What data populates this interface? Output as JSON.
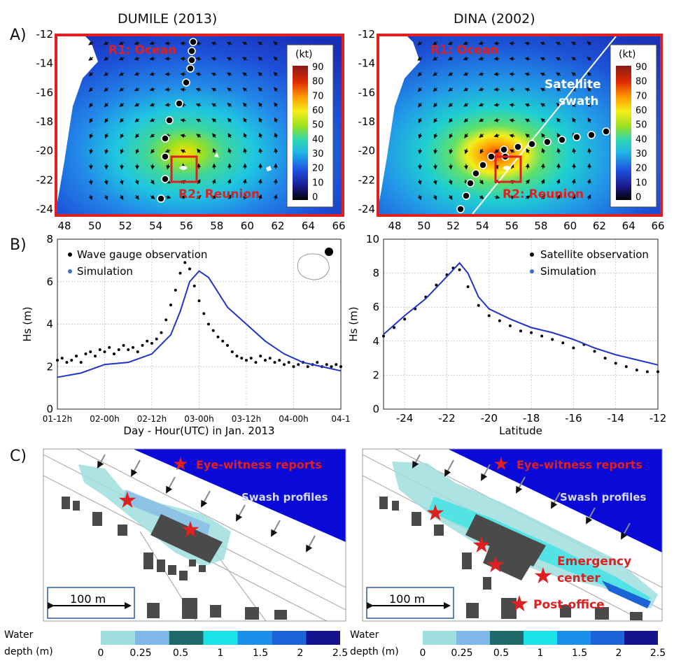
{
  "titles": {
    "left": "DUMILE (2013)",
    "right": "DINA (2002)"
  },
  "row_labels": {
    "a": "A)",
    "b": "B)",
    "c": "C)"
  },
  "maps": {
    "region1": "R1: Ocean",
    "region2": "R2: Reunion",
    "swath_label_1": "Satellite",
    "swath_label_2": "swath",
    "colorbar_unit": "(kt)",
    "colorbar_ticks": [
      "90",
      "80",
      "70",
      "60",
      "50",
      "40",
      "30",
      "20",
      "10",
      "0"
    ],
    "lon_ticks": [
      "48",
      "50",
      "52",
      "54",
      "56",
      "58",
      "60",
      "62",
      "64",
      "66"
    ],
    "lat_ticks": [
      "-12",
      "-14",
      "-16",
      "-18",
      "-20",
      "-22",
      "-24"
    ],
    "frame_color": "#e02020"
  },
  "chart_data": [
    {
      "type": "scatter",
      "title": "",
      "xlabel": "Day - Hour(UTC) in Jan. 2013",
      "ylabel": "Hs (m)",
      "categories": [
        "01-12h",
        "02-00h",
        "02-12h",
        "03-00h",
        "03-12h",
        "04-00h",
        "04-1"
      ],
      "ylim": [
        0,
        8
      ],
      "yticks": [
        "0",
        "2",
        "4",
        "6",
        "8"
      ],
      "grid": true,
      "legend_position": "top-left",
      "series": [
        {
          "name": "Wave gauge observation",
          "color": "#000000",
          "x": [
            0,
            0.1,
            0.2,
            0.3,
            0.4,
            0.5,
            0.6,
            0.7,
            0.8,
            0.9,
            1.0,
            1.1,
            1.2,
            1.3,
            1.4,
            1.5,
            1.6,
            1.7,
            1.8,
            1.9,
            2.0,
            2.1,
            2.2,
            2.3,
            2.4,
            2.5,
            2.6,
            2.7,
            2.8,
            2.9,
            3.0,
            3.1,
            3.2,
            3.3,
            3.4,
            3.5,
            3.6,
            3.7,
            3.8,
            3.9,
            4.0,
            4.1,
            4.2,
            4.3,
            4.4,
            4.5,
            4.6,
            4.7,
            4.8,
            4.9,
            5.0,
            5.1,
            5.2,
            5.3,
            5.4,
            5.5,
            5.6,
            5.7,
            5.8,
            5.9,
            6.0
          ],
          "y": [
            2.3,
            2.4,
            2.2,
            2.3,
            2.5,
            2.2,
            2.6,
            2.7,
            2.5,
            2.8,
            2.7,
            2.9,
            2.6,
            2.8,
            3.0,
            2.8,
            2.9,
            2.7,
            3.0,
            3.2,
            3.1,
            3.3,
            3.6,
            4.2,
            4.9,
            5.6,
            6.4,
            6.9,
            6.6,
            5.8,
            5.1,
            4.5,
            4.0,
            3.7,
            3.4,
            3.2,
            3.0,
            2.7,
            2.5,
            2.4,
            2.3,
            2.4,
            2.2,
            2.5,
            2.3,
            2.4,
            2.2,
            2.3,
            2.1,
            2.2,
            2.0,
            2.1,
            2.2,
            2.0,
            2.1,
            2.2,
            2.0,
            2.1,
            2.0,
            2.1,
            2.0
          ]
        },
        {
          "name": "Simulation",
          "color": "#2233cc",
          "x": [
            0,
            0.5,
            1.0,
            1.5,
            2.0,
            2.4,
            2.6,
            2.8,
            3.0,
            3.2,
            3.6,
            4.0,
            4.4,
            4.8,
            5.2,
            5.6,
            6.0
          ],
          "y": [
            1.5,
            1.7,
            2.1,
            2.2,
            2.6,
            3.5,
            4.6,
            6.0,
            6.5,
            6.2,
            4.8,
            4.0,
            3.2,
            2.6,
            2.2,
            2.0,
            1.8
          ]
        }
      ],
      "inset_label": ""
    },
    {
      "type": "scatter",
      "title": "",
      "xlabel": "Latitude",
      "ylabel": "Hs (m)",
      "xticks": [
        "-24",
        "-22",
        "-20",
        "-18",
        "-16",
        "-14",
        "-12"
      ],
      "xlim": [
        -25,
        -12
      ],
      "ylim": [
        0,
        10
      ],
      "yticks": [
        "0",
        "2",
        "4",
        "6",
        "8",
        "10"
      ],
      "grid": true,
      "legend_position": "top-right",
      "series": [
        {
          "name": "Satellite observation",
          "color": "#000000",
          "x": [
            -25,
            -24.5,
            -24,
            -23.5,
            -23,
            -22.5,
            -22,
            -21.7,
            -21.4,
            -21,
            -20.5,
            -20,
            -19.5,
            -19,
            -18.5,
            -18,
            -17.5,
            -17,
            -16.5,
            -16,
            -15.5,
            -15,
            -14.5,
            -14,
            -13.5,
            -13,
            -12.5,
            -12
          ],
          "y": [
            4.3,
            4.8,
            5.3,
            5.9,
            6.6,
            7.3,
            7.9,
            8.3,
            8.2,
            7.2,
            6.1,
            5.5,
            5.2,
            4.9,
            4.6,
            4.5,
            4.3,
            4.1,
            3.9,
            3.6,
            3.8,
            3.4,
            3.0,
            2.7,
            2.5,
            2.3,
            2.2,
            2.2
          ]
        },
        {
          "name": "Simulation",
          "color": "#2233cc",
          "x": [
            -25,
            -24,
            -23,
            -22,
            -21.4,
            -21,
            -20.5,
            -20,
            -19,
            -18,
            -17,
            -16,
            -15,
            -14,
            -13,
            -12
          ],
          "y": [
            4.4,
            5.5,
            6.5,
            7.8,
            8.6,
            8.0,
            6.6,
            5.9,
            5.3,
            4.8,
            4.5,
            4.1,
            3.6,
            3.2,
            2.9,
            2.6
          ]
        }
      ]
    }
  ],
  "flood_maps": {
    "eye_witness": "Eye-witness reports",
    "swash_profiles": "Swash profiles",
    "emergency_1": "Emergency",
    "emergency_2": "center",
    "post_office": "Post-office",
    "scale_bar": "100 m",
    "legend_label_1": "Water",
    "legend_label_2": "depth (m)",
    "legend_ticks": [
      "0",
      "0.25",
      "0.5",
      "1",
      "1.5",
      "2",
      "2.5"
    ],
    "legend_colors": [
      "#9fdede",
      "#7fb7e6",
      "#1f6b6b",
      "#19e3e6",
      "#1a8ee8",
      "#1b63d6",
      "#14148f"
    ]
  }
}
